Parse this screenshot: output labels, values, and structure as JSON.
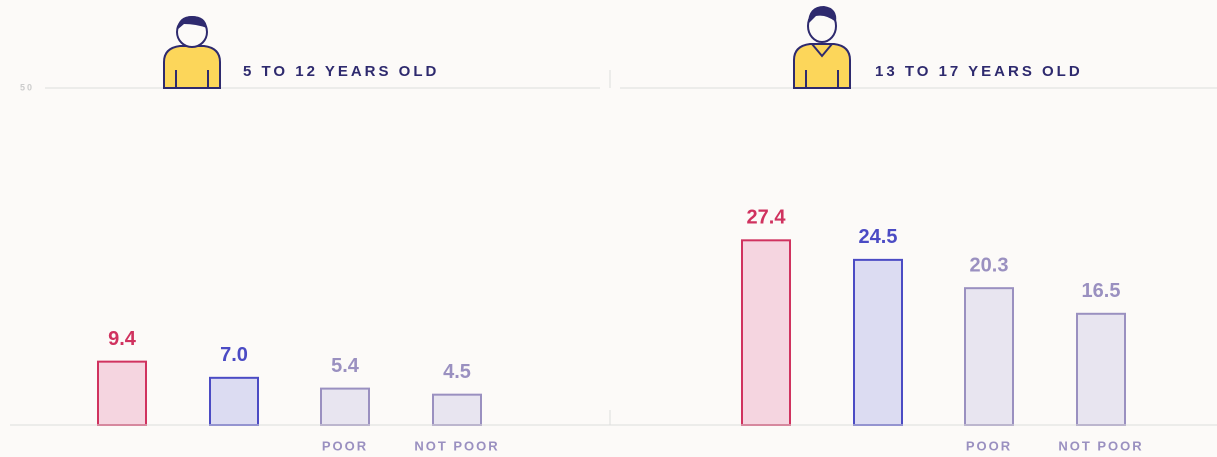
{
  "chart_data": [
    {
      "type": "bar",
      "title": "5 TO 12 YEARS OLD",
      "categories": [
        null,
        null,
        "POOR",
        "NOT POOR"
      ],
      "values": [
        9.4,
        7.0,
        5.4,
        4.5
      ],
      "value_labels": [
        "9.4",
        "7.0",
        "5.4",
        "4.5"
      ],
      "colors": [
        "#d0325f",
        "#4b4bc4",
        "#9a90c0",
        "#9a90c0"
      ],
      "fills": [
        "#f5d5e0",
        "#dcdcf2",
        "#e8e5f0",
        "#e8e5f0"
      ],
      "ylim": [
        0,
        50
      ],
      "yticks": [
        50
      ],
      "grid": true
    },
    {
      "type": "bar",
      "title": "13 TO 17 YEARS OLD",
      "categories": [
        null,
        null,
        "POOR",
        "NOT POOR"
      ],
      "values": [
        27.4,
        24.5,
        20.3,
        16.5
      ],
      "value_labels": [
        "27.4",
        "24.5",
        "20.3",
        "16.5"
      ],
      "colors": [
        "#d0325f",
        "#4b4bc4",
        "#9a90c0",
        "#9a90c0"
      ],
      "fills": [
        "#f5d5e0",
        "#dcdcf2",
        "#e8e5f0",
        "#e8e5f0"
      ],
      "ylim": [
        0,
        50
      ],
      "grid": true
    }
  ]
}
